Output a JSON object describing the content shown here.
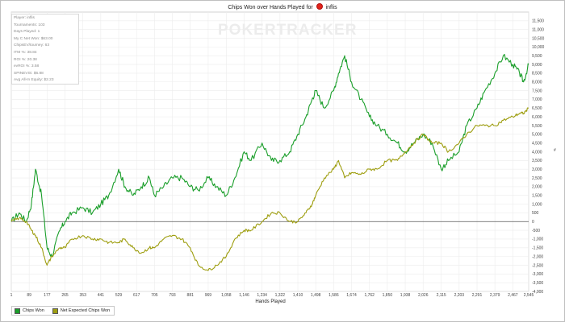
{
  "chart_data": {
    "type": "line",
    "title_prefix": "Chips Won over Hands Played for",
    "title_player": "inflis",
    "xlabel": "Hands Played",
    "ylabel": "",
    "xlim": [
      1,
      2545
    ],
    "ylim": [
      -4000,
      12000
    ],
    "x_ticks": [
      1,
      89,
      177,
      265,
      353,
      441,
      529,
      617,
      705,
      793,
      881,
      969,
      1058,
      1146,
      1234,
      1322,
      1410,
      1498,
      1586,
      1674,
      1762,
      1850,
      1938,
      2026,
      2115,
      2203,
      2291,
      2379,
      2467,
      2545
    ],
    "y_ticks": [
      -4000,
      -3500,
      -3000,
      -2500,
      -2000,
      -1500,
      -1000,
      -500,
      0,
      500,
      1000,
      1500,
      2000,
      2500,
      3000,
      3500,
      4000,
      4500,
      5000,
      5500,
      6000,
      6500,
      7000,
      7500,
      8000,
      8500,
      9000,
      9500,
      10000,
      10500,
      11000,
      11500
    ],
    "grid": true,
    "legend_position": "bottom-left",
    "series": [
      {
        "name": "Chips Won",
        "color": "#1a9e2a",
        "x": [
          1,
          40,
          75,
          100,
          120,
          150,
          177,
          200,
          240,
          265,
          300,
          353,
          400,
          441,
          480,
          529,
          560,
          600,
          640,
          680,
          705,
          750,
          793,
          840,
          881,
          920,
          969,
          1010,
          1058,
          1100,
          1146,
          1180,
          1234,
          1280,
          1322,
          1370,
          1410,
          1450,
          1480,
          1498,
          1540,
          1586,
          1610,
          1640,
          1674,
          1720,
          1762,
          1800,
          1850,
          1900,
          1938,
          1980,
          2026,
          2070,
          2115,
          2150,
          2203,
          2240,
          2291,
          2330,
          2379,
          2420,
          2467,
          2500,
          2520,
          2545
        ],
        "y": [
          0,
          500,
          0,
          1000,
          3000,
          1500,
          -1500,
          -2000,
          -500,
          0,
          500,
          800,
          500,
          1000,
          1500,
          3000,
          2000,
          1500,
          2000,
          2500,
          1500,
          2000,
          2500,
          2500,
          2000,
          1800,
          2500,
          2000,
          1500,
          2500,
          4000,
          3500,
          4500,
          3500,
          3500,
          4000,
          5000,
          6000,
          7000,
          7500,
          6500,
          7500,
          8500,
          9500,
          8000,
          7000,
          6000,
          5500,
          5000,
          4500,
          4000,
          4500,
          5000,
          4500,
          3000,
          3500,
          4000,
          5500,
          6500,
          7500,
          8500,
          9500,
          9000,
          8500,
          8000,
          9000
        ]
      },
      {
        "name": "Net Expected Chips Won",
        "color": "#9e9e10",
        "x": [
          1,
          40,
          75,
          100,
          120,
          150,
          177,
          200,
          240,
          265,
          300,
          353,
          400,
          441,
          480,
          529,
          560,
          600,
          640,
          680,
          705,
          750,
          793,
          840,
          881,
          920,
          969,
          1010,
          1058,
          1100,
          1146,
          1180,
          1234,
          1280,
          1322,
          1370,
          1410,
          1450,
          1480,
          1498,
          1540,
          1586,
          1610,
          1640,
          1674,
          1720,
          1762,
          1800,
          1850,
          1900,
          1938,
          1980,
          2026,
          2070,
          2115,
          2150,
          2203,
          2240,
          2291,
          2330,
          2379,
          2420,
          2467,
          2500,
          2520,
          2545
        ],
        "y": [
          0,
          200,
          0,
          -500,
          -800,
          -1500,
          -2500,
          -2000,
          -1500,
          -1500,
          -1000,
          -800,
          -1000,
          -1000,
          -1200,
          -1200,
          -1000,
          -1500,
          -1800,
          -1500,
          -1500,
          -1000,
          -800,
          -1000,
          -1500,
          -2500,
          -2800,
          -2500,
          -2000,
          -1000,
          -500,
          -500,
          0,
          500,
          500,
          0,
          0,
          500,
          1000,
          1500,
          2500,
          3000,
          3500,
          2500,
          2800,
          2700,
          3000,
          3000,
          3500,
          3500,
          4000,
          4500,
          5000,
          4500,
          4500,
          4000,
          4500,
          5000,
          5500,
          5500,
          5500,
          5800,
          6000,
          6200,
          6200,
          6500
        ]
      }
    ]
  },
  "stats": [
    "Player: inflis",
    "Tournaments: 103",
    "Days Played: 1",
    "My C Net Won: $63.00",
    "ChipsEV/tourney: 63",
    "ITM %: 38.84",
    "ROI %: 20.38",
    "evROI %: 3.58",
    "SPINEVIS: $6.88",
    "Avg All-In Equity: $2.23"
  ],
  "watermark": "POKERTRACKER",
  "legend": {
    "items": [
      {
        "label": "Chips Won",
        "color": "#1a9e2a"
      },
      {
        "label": "Net Expected Chips Won",
        "color": "#9e9e10"
      }
    ]
  }
}
